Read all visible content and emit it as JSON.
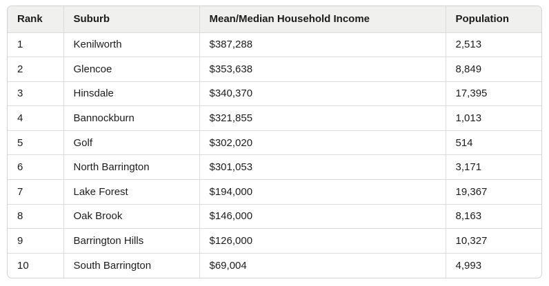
{
  "table": {
    "columns": [
      {
        "label": "Rank"
      },
      {
        "label": "Suburb"
      },
      {
        "label": "Mean/Median Household Income"
      },
      {
        "label": "Population"
      }
    ],
    "rows": [
      {
        "rank": "1",
        "suburb": "Kenilworth",
        "income": "$387,288",
        "population": "2,513"
      },
      {
        "rank": "2",
        "suburb": "Glencoe",
        "income": "$353,638",
        "population": "8,849"
      },
      {
        "rank": "3",
        "suburb": "Hinsdale",
        "income": "$340,370",
        "population": "17,395"
      },
      {
        "rank": "4",
        "suburb": "Bannockburn",
        "income": "$321,855",
        "population": "1,013"
      },
      {
        "rank": "5",
        "suburb": "Golf",
        "income": "$302,020",
        "population": "514"
      },
      {
        "rank": "6",
        "suburb": "North Barrington",
        "income": "$301,053",
        "population": "3,171"
      },
      {
        "rank": "7",
        "suburb": "Lake Forest",
        "income": "$194,000",
        "population": "19,367"
      },
      {
        "rank": "8",
        "suburb": "Oak Brook",
        "income": "$146,000",
        "population": "8,163"
      },
      {
        "rank": "9",
        "suburb": "Barrington Hills",
        "income": "$126,000",
        "population": "10,327"
      },
      {
        "rank": "10",
        "suburb": "South Barrington",
        "income": "$69,004",
        "population": "4,993"
      }
    ]
  },
  "chart_data": {
    "type": "table",
    "title": "",
    "columns": [
      "Rank",
      "Suburb",
      "Mean/Median Household Income",
      "Population"
    ],
    "rows": [
      [
        1,
        "Kenilworth",
        "$387,288",
        "2,513"
      ],
      [
        2,
        "Glencoe",
        "$353,638",
        "8,849"
      ],
      [
        3,
        "Hinsdale",
        "$340,370",
        "17,395"
      ],
      [
        4,
        "Bannockburn",
        "$321,855",
        "1,013"
      ],
      [
        5,
        "Golf",
        "$302,020",
        "514"
      ],
      [
        6,
        "North Barrington",
        "$301,053",
        "3,171"
      ],
      [
        7,
        "Lake Forest",
        "$194,000",
        "19,367"
      ],
      [
        8,
        "Oak Brook",
        "$146,000",
        "8,163"
      ],
      [
        9,
        "Barrington Hills",
        "$126,000",
        "10,327"
      ],
      [
        10,
        "South Barrington",
        "$69,004",
        "4,993"
      ]
    ],
    "income_values": [
      387288,
      353638,
      340370,
      321855,
      302020,
      301053,
      194000,
      146000,
      126000,
      69004
    ],
    "population_values": [
      2513,
      8849,
      17395,
      1013,
      514,
      3171,
      19367,
      8163,
      10327,
      4993
    ]
  },
  "colors": {
    "header_background": "#f0f0ee",
    "border": "#d2d2d0",
    "divider": "#dcdcda",
    "text": "#1c1c1c"
  }
}
